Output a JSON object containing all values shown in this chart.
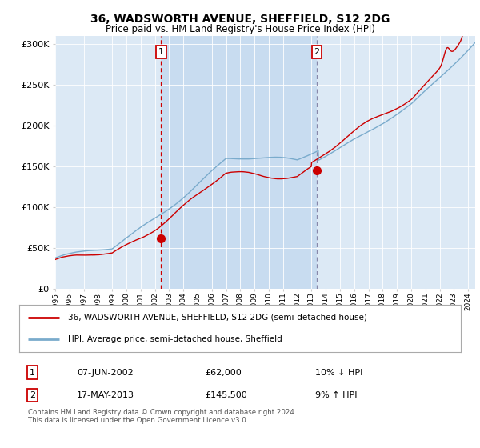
{
  "title1": "36, WADSWORTH AVENUE, SHEFFIELD, S12 2DG",
  "title2": "Price paid vs. HM Land Registry's House Price Index (HPI)",
  "plot_bg": "#dce9f5",
  "highlight_bg": "#c8dcf0",
  "ylabel_ticks": [
    "£0",
    "£50K",
    "£100K",
    "£150K",
    "£200K",
    "£250K",
    "£300K"
  ],
  "ytick_values": [
    0,
    50000,
    100000,
    150000,
    200000,
    250000,
    300000
  ],
  "ylim": [
    0,
    310000
  ],
  "xlim_start": 1995.0,
  "xlim_end": 2024.5,
  "sale1_x": 2002.44,
  "sale1_y": 62000,
  "sale1_label": "1",
  "sale2_x": 2013.37,
  "sale2_y": 145500,
  "sale2_label": "2",
  "legend_line1": "36, WADSWORTH AVENUE, SHEFFIELD, S12 2DG (semi-detached house)",
  "legend_line2": "HPI: Average price, semi-detached house, Sheffield",
  "ann1_box": "1",
  "ann1_date": "07-JUN-2002",
  "ann1_price": "£62,000",
  "ann1_hpi": "10% ↓ HPI",
  "ann2_box": "2",
  "ann2_date": "17-MAY-2013",
  "ann2_price": "£145,500",
  "ann2_hpi": "9% ↑ HPI",
  "footer": "Contains HM Land Registry data © Crown copyright and database right 2024.\nThis data is licensed under the Open Government Licence v3.0.",
  "line_red": "#cc0000",
  "line_blue": "#7aabcc",
  "vline1_color": "#cc0000",
  "vline2_color": "#8888aa",
  "grid_color": "#ffffff"
}
